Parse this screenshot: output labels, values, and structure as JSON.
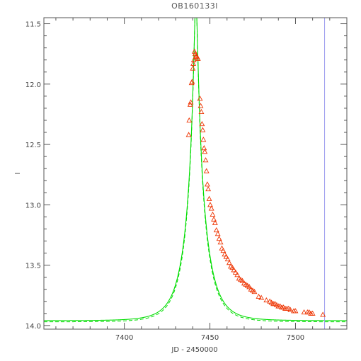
{
  "chart_data": {
    "type": "scatter",
    "title": "OB160133l",
    "xlabel": "JD - 2450000",
    "ylabel": "I",
    "xlim": [
      7353,
      7530
    ],
    "ylim": [
      14.03,
      11.45
    ],
    "y_inverted": true,
    "x_ticks": [
      7400,
      7450,
      7500
    ],
    "y_ticks": [
      11.5,
      12.0,
      12.5,
      13.0,
      13.5,
      14.0
    ],
    "x_tick_labels": [
      "7400",
      "7450",
      "7500"
    ],
    "y_tick_labels": [
      "11.5",
      "12.0",
      "12.5",
      "13.0",
      "13.5",
      "14.0"
    ],
    "model": {
      "name": "",
      "color": "#00dd00",
      "t0": 7441.8,
      "tE": 11.5,
      "u0": 0.088,
      "baseline_mag": 13.96
    },
    "model_dashed": {
      "color": "#00dd00",
      "t0": 7441.8,
      "tE": 11.2,
      "u0": 0.086,
      "baseline_mag": 13.97
    },
    "vline": {
      "x": 7517,
      "color": "#9999ee"
    },
    "points": {
      "marker": "triangle",
      "color": "#ee3300",
      "x": [
        7437.6,
        7437.9,
        7438.5,
        7438.8,
        7439.3,
        7439.6,
        7440.0,
        7440.3,
        7440.6,
        7441.0,
        7441.4,
        7441.8,
        7442.3,
        7442.7,
        7443.0,
        7444.2,
        7444.6,
        7445.0,
        7445.4,
        7445.8,
        7446.2,
        7446.6,
        7447.0,
        7447.5,
        7448.0,
        7448.5,
        7449.0,
        7449.6,
        7450.2,
        7450.9,
        7451.6,
        7452.3,
        7453.0,
        7453.8,
        7454.6,
        7455.4,
        7456.2,
        7457.0,
        7457.8,
        7458.6,
        7459.5,
        7460.4,
        7461.3,
        7462.2,
        7463.1,
        7464.0,
        7465.0,
        7466.0,
        7467.0,
        7468.0,
        7469.0,
        7470.0,
        7471.0,
        7472.0,
        7473.0,
        7474.0,
        7475.0,
        7476.0,
        7478.5,
        7480.0,
        7483.0,
        7485.0,
        7486.0,
        7487.0,
        7488.0,
        7489.0,
        7490.0,
        7491.0,
        7492.0,
        7493.0,
        7494.0,
        7495.0,
        7496.0,
        7497.0,
        7499.0,
        7500.0,
        7505.0,
        7507.0,
        7508.0,
        7509.0,
        7510.0,
        7516.0
      ],
      "y": [
        12.42,
        12.3,
        12.17,
        12.15,
        11.99,
        11.98,
        11.87,
        11.83,
        11.8,
        11.73,
        11.75,
        11.77,
        11.77,
        11.78,
        11.79,
        12.12,
        12.18,
        12.23,
        12.33,
        12.38,
        12.46,
        12.53,
        12.56,
        12.63,
        12.72,
        12.83,
        12.87,
        12.95,
        13.0,
        13.03,
        13.08,
        13.12,
        13.15,
        13.21,
        13.24,
        13.28,
        13.31,
        13.36,
        13.38,
        13.41,
        13.43,
        13.45,
        13.48,
        13.51,
        13.52,
        13.54,
        13.56,
        13.58,
        13.61,
        13.62,
        13.63,
        13.65,
        13.66,
        13.67,
        13.68,
        13.7,
        13.71,
        13.72,
        13.76,
        13.77,
        13.79,
        13.8,
        13.81,
        13.82,
        13.82,
        13.83,
        13.84,
        13.84,
        13.85,
        13.85,
        13.86,
        13.86,
        13.86,
        13.87,
        13.88,
        13.88,
        13.89,
        13.89,
        13.89,
        13.9,
        13.9,
        13.91
      ]
    }
  }
}
